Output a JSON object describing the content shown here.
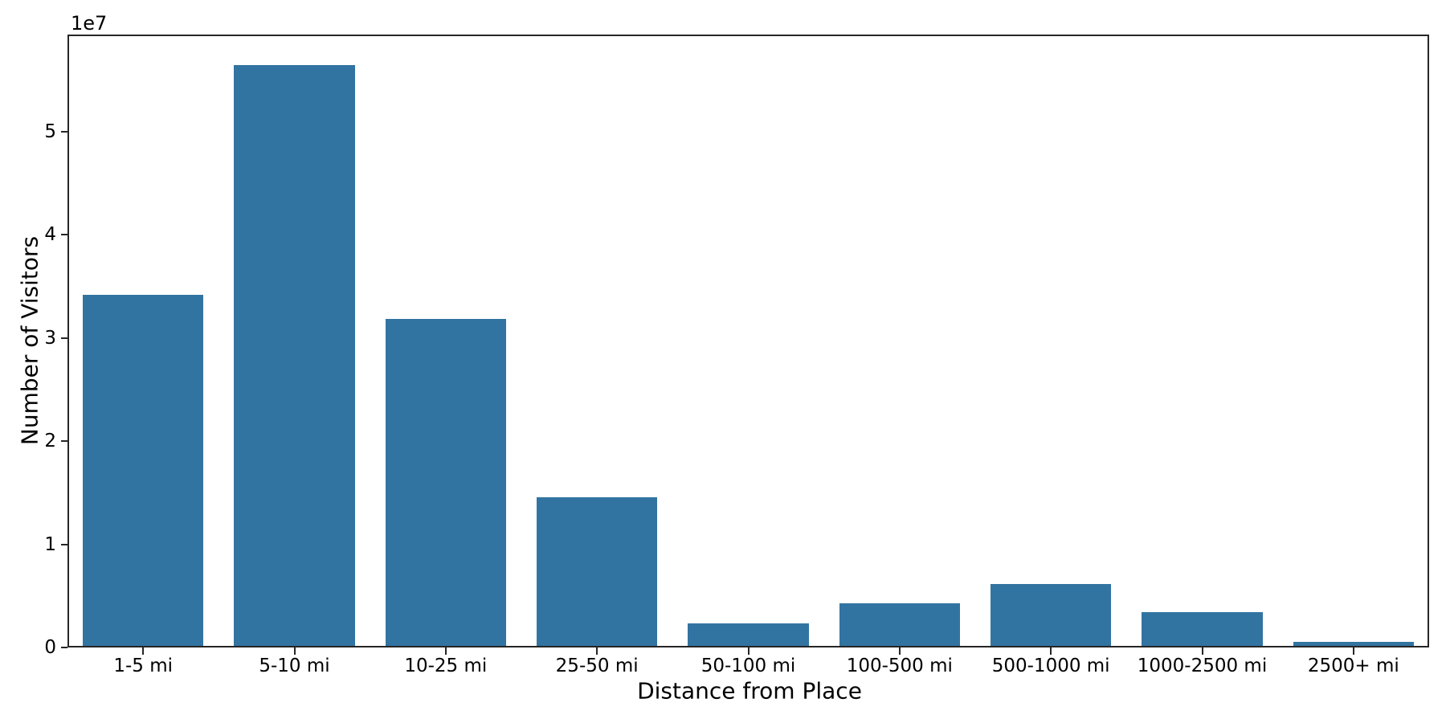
{
  "figure": {
    "background": "#ffffff",
    "axis_color": "#262626",
    "text_color": "#000000"
  },
  "chart_data": {
    "type": "bar",
    "title": "",
    "xlabel": "Distance from Place",
    "ylabel": "Number of Visitors",
    "y_offset_text": "1e7",
    "categories": [
      "1-5 mi",
      "5-10 mi",
      "10-25 mi",
      "25-50 mi",
      "50-100 mi",
      "100-500 mi",
      "500-1000 mi",
      "1000-2500 mi",
      "2500+ mi"
    ],
    "values": [
      34000000,
      56300000,
      31700000,
      14400000,
      2200000,
      4100000,
      6000000,
      3300000,
      400000
    ],
    "bar_color": "#3274a1",
    "bar_width_fraction": 0.8,
    "ylim": [
      0,
      59400000
    ],
    "yticks": [
      0,
      10000000,
      20000000,
      30000000,
      40000000,
      50000000
    ],
    "ytick_labels": [
      "0",
      "1",
      "2",
      "3",
      "4",
      "5"
    ],
    "grid": false,
    "legend": null
  }
}
